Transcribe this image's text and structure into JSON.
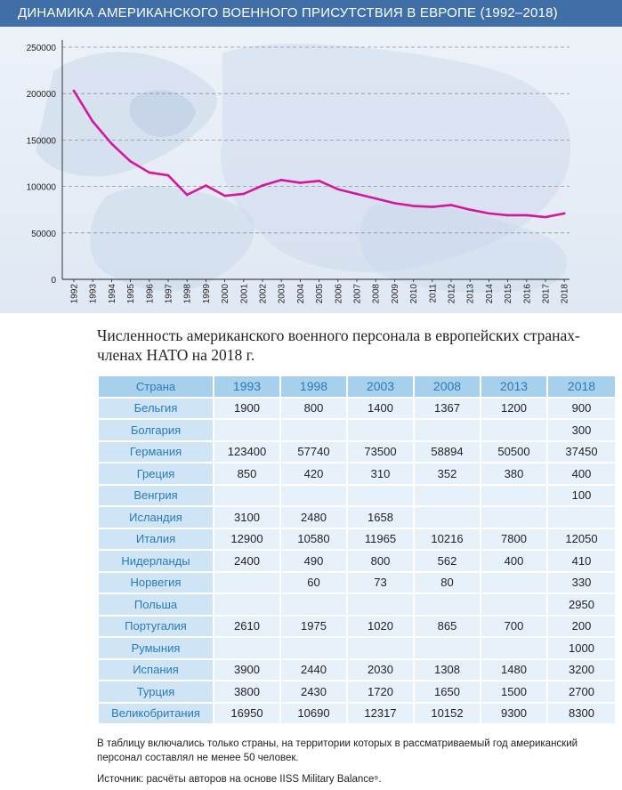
{
  "header": {
    "title": "ДИНАМИКА АМЕРИКАНСКОГО ВОЕННОГО ПРИСУТСТВИЯ В ЕВРОПЕ (1992–2018)"
  },
  "colors": {
    "title_bar": "#3f6fa6",
    "line": "#d4179b",
    "table_header": "#a7d0ec",
    "table_cell": "#e6f1fa",
    "country_cell": "#cfe4f4",
    "label_blue": "#2b7ab8"
  },
  "chart_data": {
    "type": "line",
    "title": "ДИНАМИКА АМЕРИКАНСКОГО ВОЕННОГО ПРИСУТСТВИЯ В ЕВРОПЕ (1992–2018)",
    "xlabel": "",
    "ylabel": "",
    "ylim": [
      0,
      250000
    ],
    "yticks": [
      "0",
      "50000",
      "100000",
      "150000",
      "200000",
      "250000"
    ],
    "grid": "horizontal dashed",
    "x": [
      "1992",
      "1993",
      "1994",
      "1995",
      "1996",
      "1997",
      "1998",
      "1999",
      "2000",
      "2001",
      "2002",
      "2003",
      "2004",
      "2005",
      "2006",
      "2007",
      "2008",
      "2009",
      "2010",
      "2011",
      "2012",
      "2013",
      "2014",
      "2015",
      "2016",
      "2017",
      "2018"
    ],
    "series": [
      {
        "values": [
          203000,
          170000,
          146000,
          127000,
          115000,
          112000,
          91000,
          101000,
          90000,
          92000,
          101000,
          107000,
          104000,
          106000,
          97000,
          92000,
          87000,
          82000,
          79000,
          78000,
          80000,
          75000,
          71000,
          69000,
          69000,
          67000,
          71000
        ]
      }
    ]
  },
  "table": {
    "title": "Численность американского военного персонала в европейских странах-членах НАТО на 2018 г.",
    "headers": [
      "Страна",
      "1993",
      "1998",
      "2003",
      "2008",
      "2013",
      "2018"
    ],
    "rows": [
      [
        "Бельгия",
        "1900",
        "800",
        "1400",
        "1367",
        "1200",
        "900"
      ],
      [
        "Болгария",
        "",
        "",
        "",
        "",
        "",
        "300"
      ],
      [
        "Германия",
        "123400",
        "57740",
        "73500",
        "58894",
        "50500",
        "37450"
      ],
      [
        "Греция",
        "850",
        "420",
        "310",
        "352",
        "380",
        "400"
      ],
      [
        "Венгрия",
        "",
        "",
        "",
        "",
        "",
        "100"
      ],
      [
        "Исландия",
        "3100",
        "2480",
        "1658",
        "",
        "",
        ""
      ],
      [
        "Италия",
        "12900",
        "10580",
        "11965",
        "10216",
        "7800",
        "12050"
      ],
      [
        "Нидерланды",
        "2400",
        "490",
        "800",
        "562",
        "400",
        "410"
      ],
      [
        "Норвегия",
        "",
        "60",
        "73",
        "80",
        "",
        "330"
      ],
      [
        "Польша",
        "",
        "",
        "",
        "",
        "",
        "2950"
      ],
      [
        "Португалия",
        "2610",
        "1975",
        "1020",
        "865",
        "700",
        "200"
      ],
      [
        "Румыния",
        "",
        "",
        "",
        "",
        "",
        "1000"
      ],
      [
        "Испания",
        "3900",
        "2440",
        "2030",
        "1308",
        "1480",
        "3200"
      ],
      [
        "Турция",
        "3800",
        "2430",
        "1720",
        "1650",
        "1500",
        "2700"
      ],
      [
        "Великобритания",
        "16950",
        "10690",
        "12317",
        "10152",
        "9300",
        "8300"
      ]
    ]
  },
  "footnote": "В таблицу включались только страны, на территории которых в рассматриваемый год американский персонал составлял не менее 50 человек.",
  "source": "Источник: расчёты авторов на основе IISS Military Balance⁹."
}
